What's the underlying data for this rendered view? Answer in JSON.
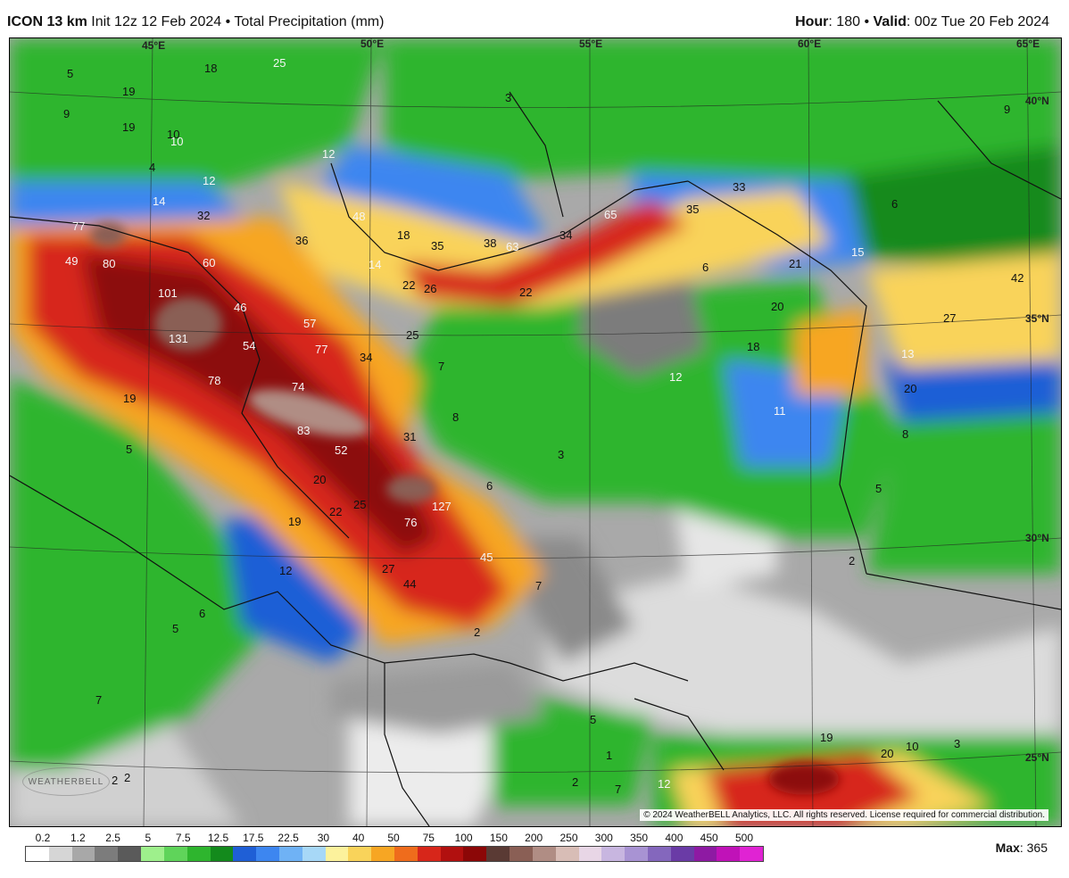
{
  "header": {
    "model": "ICON 13 km",
    "init": "Init 12z 12 Feb 2024",
    "bullet": "•",
    "field": "Total Precipitation (mm)",
    "hour_label": "Hour",
    "hour_value": ": 180",
    "valid_label": "Valid",
    "valid_value": ": 00z Tue 20 Feb 2024"
  },
  "grid_labels": {
    "lon_45": "45°E",
    "lon_50": "50°E",
    "lon_55": "55°E",
    "lon_60": "60°E",
    "lon_65": "65°E",
    "lat_40": "40°N",
    "lat_35": "35°N",
    "lat_30": "30°N",
    "lat_25": "25°N"
  },
  "map_values": {
    "v1": "77",
    "v2": "80",
    "v3": "49",
    "v4": "60",
    "v5": "101",
    "v6": "131",
    "v7": "46",
    "v8": "54",
    "v9": "78",
    "v10": "57",
    "v11": "77",
    "v12": "74",
    "v13": "83",
    "v14": "52",
    "v15": "34",
    "v16": "31",
    "v17": "127",
    "v18": "76",
    "v19": "45",
    "v20": "44",
    "v21": "27",
    "v22": "25",
    "v23": "20",
    "v24": "22",
    "v25": "19",
    "v26": "12",
    "v27": "36",
    "v28": "32",
    "v29": "14",
    "v30": "12",
    "v31": "48",
    "v32": "18",
    "v33": "35",
    "v34": "38",
    "v35": "63",
    "v36": "34",
    "v37": "65",
    "v38": "35",
    "v39": "33",
    "v40": "22",
    "v41": "26",
    "v42": "22",
    "v43": "14",
    "v44": "25",
    "v45": "7",
    "v46": "8",
    "v47": "6",
    "v48": "3",
    "v49": "7",
    "v50": "2",
    "v51": "6",
    "v52": "12",
    "v53": "18",
    "v54": "20",
    "v55": "21",
    "v56": "15",
    "v57": "11",
    "v58": "13",
    "v59": "20",
    "v60": "8",
    "v61": "5",
    "v62": "2",
    "v63": "27",
    "v64": "42",
    "v65": "9",
    "v66": "6",
    "v67": "5",
    "v68": "19",
    "v69": "10",
    "v70": "9",
    "v71": "4",
    "v72": "19",
    "v73": "6",
    "v74": "5",
    "v75": "7",
    "v76": "2",
    "v77": "2",
    "v78": "5",
    "v79": "1",
    "v80": "2",
    "v81": "7",
    "v82": "12",
    "v83": "19",
    "v84": "20",
    "v85": "10",
    "v86": "3",
    "v87": "5",
    "v88": "19",
    "v89": "10",
    "v90": "12",
    "v91": "25",
    "v92": "18",
    "v93": "3"
  },
  "legend": {
    "ticks": [
      "0.2",
      "1.2",
      "2.5",
      "5",
      "7.5",
      "12.5",
      "17.5",
      "22.5",
      "30",
      "40",
      "50",
      "75",
      "100",
      "150",
      "200",
      "250",
      "300",
      "350",
      "400",
      "450",
      "500"
    ],
    "colors": [
      "#ffffff",
      "#d6d6d6",
      "#a8a8a8",
      "#7c7c7c",
      "#5a5a5a",
      "#9ef08c",
      "#5fd45a",
      "#2eb52e",
      "#138a1c",
      "#1f5fd6",
      "#3d86f0",
      "#6fb2f5",
      "#a7d8f7",
      "#fcf29c",
      "#f9d35a",
      "#f7a623",
      "#ef6c1c",
      "#d7261a",
      "#b1100f",
      "#8c0707",
      "#5a3a34",
      "#8a5f55",
      "#b08d84",
      "#d8bdb6",
      "#e8d6e6",
      "#c8b6e0",
      "#a893d3",
      "#8467bd",
      "#6a3ba6",
      "#8e1aa3",
      "#c012b8",
      "#e023d3"
    ],
    "max_label": "Max",
    "max_value": ": 365"
  },
  "logo_text": "WEATHERBELL",
  "copyright": "© 2024 WeatherBELL Analytics, LLC. All rights reserved. License required for commercial distribution."
}
